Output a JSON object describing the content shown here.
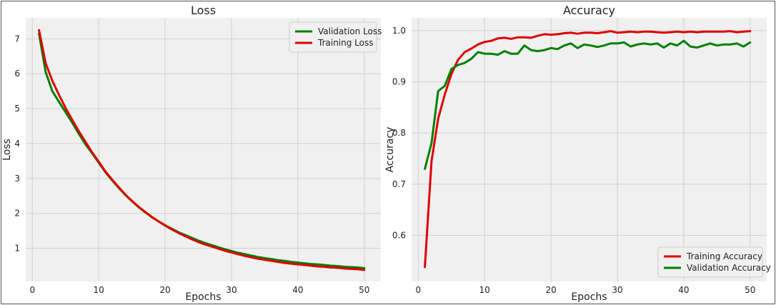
{
  "chart_data": [
    {
      "type": "line",
      "title": "Loss",
      "xlabel": "Epochs",
      "ylabel": "Loss",
      "xlim": [
        -1,
        52.5
      ],
      "ylim": [
        0.05,
        7.6
      ],
      "xticks": [
        0,
        10,
        20,
        30,
        40,
        50
      ],
      "yticks": [
        1,
        2,
        3,
        4,
        5,
        6,
        7
      ],
      "grid": true,
      "legend_position": "top-right",
      "x": [
        1,
        2,
        3,
        4,
        5,
        6,
        7,
        8,
        9,
        10,
        11,
        12,
        13,
        14,
        15,
        16,
        17,
        18,
        19,
        20,
        21,
        22,
        23,
        24,
        25,
        26,
        27,
        28,
        29,
        30,
        31,
        32,
        33,
        34,
        35,
        36,
        37,
        38,
        39,
        40,
        41,
        42,
        43,
        44,
        45,
        46,
        47,
        48,
        49,
        50
      ],
      "series": [
        {
          "name": "Validation Loss",
          "color": "#008000",
          "values": [
            7.15,
            6.05,
            5.5,
            5.2,
            4.9,
            4.6,
            4.28,
            3.98,
            3.72,
            3.45,
            3.18,
            2.95,
            2.73,
            2.53,
            2.35,
            2.18,
            2.03,
            1.89,
            1.77,
            1.66,
            1.56,
            1.46,
            1.38,
            1.3,
            1.22,
            1.15,
            1.09,
            1.03,
            0.97,
            0.92,
            0.87,
            0.83,
            0.79,
            0.75,
            0.72,
            0.69,
            0.66,
            0.64,
            0.61,
            0.59,
            0.57,
            0.55,
            0.54,
            0.52,
            0.5,
            0.49,
            0.47,
            0.46,
            0.45,
            0.43
          ]
        },
        {
          "name": "Training Loss",
          "color": "#e00000",
          "values": [
            7.25,
            6.3,
            5.8,
            5.4,
            5.02,
            4.68,
            4.35,
            4.05,
            3.75,
            3.48,
            3.2,
            2.97,
            2.75,
            2.54,
            2.36,
            2.19,
            2.04,
            1.9,
            1.77,
            1.65,
            1.54,
            1.44,
            1.35,
            1.26,
            1.18,
            1.11,
            1.05,
            0.99,
            0.93,
            0.88,
            0.83,
            0.78,
            0.74,
            0.7,
            0.67,
            0.64,
            0.61,
            0.58,
            0.56,
            0.54,
            0.52,
            0.5,
            0.48,
            0.47,
            0.45,
            0.44,
            0.42,
            0.41,
            0.4,
            0.38
          ]
        }
      ]
    },
    {
      "type": "line",
      "title": "Accuracy",
      "xlabel": "Epochs",
      "ylabel": "Accuracy",
      "xlim": [
        -1,
        52.5
      ],
      "ylim": [
        0.51,
        1.025
      ],
      "xticks": [
        0,
        10,
        20,
        30,
        40,
        50
      ],
      "yticks": [
        0.6,
        0.7,
        0.8,
        0.9,
        1.0
      ],
      "ytick_labels": [
        "0.6",
        "0.7",
        "0.8",
        "0.9",
        "1.0"
      ],
      "grid": true,
      "legend_position": "bottom-right",
      "x": [
        1,
        2,
        3,
        4,
        5,
        6,
        7,
        8,
        9,
        10,
        11,
        12,
        13,
        14,
        15,
        16,
        17,
        18,
        19,
        20,
        21,
        22,
        23,
        24,
        25,
        26,
        27,
        28,
        29,
        30,
        31,
        32,
        33,
        34,
        35,
        36,
        37,
        38,
        39,
        40,
        41,
        42,
        43,
        44,
        45,
        46,
        47,
        48,
        49,
        50
      ],
      "series": [
        {
          "name": "Training Accuracy",
          "color": "#e00000",
          "values": [
            0.538,
            0.745,
            0.828,
            0.875,
            0.915,
            0.943,
            0.958,
            0.965,
            0.973,
            0.978,
            0.98,
            0.985,
            0.986,
            0.984,
            0.987,
            0.987,
            0.986,
            0.99,
            0.993,
            0.992,
            0.993,
            0.995,
            0.996,
            0.994,
            0.996,
            0.996,
            0.995,
            0.997,
            0.999,
            0.996,
            0.997,
            0.998,
            0.997,
            0.998,
            0.998,
            0.997,
            0.996,
            0.997,
            0.998,
            0.997,
            0.998,
            0.997,
            0.998,
            0.998,
            0.998,
            0.998,
            0.999,
            0.997,
            0.998,
            0.999
          ]
        },
        {
          "name": "Validation Accuracy",
          "color": "#008000",
          "values": [
            0.73,
            0.78,
            0.882,
            0.892,
            0.925,
            0.933,
            0.937,
            0.945,
            0.958,
            0.955,
            0.955,
            0.953,
            0.96,
            0.955,
            0.955,
            0.971,
            0.962,
            0.96,
            0.962,
            0.966,
            0.964,
            0.971,
            0.975,
            0.966,
            0.973,
            0.971,
            0.968,
            0.971,
            0.975,
            0.975,
            0.977,
            0.969,
            0.973,
            0.975,
            0.973,
            0.975,
            0.967,
            0.975,
            0.971,
            0.98,
            0.969,
            0.967,
            0.971,
            0.975,
            0.971,
            0.973,
            0.973,
            0.975,
            0.969,
            0.977
          ]
        }
      ]
    }
  ]
}
